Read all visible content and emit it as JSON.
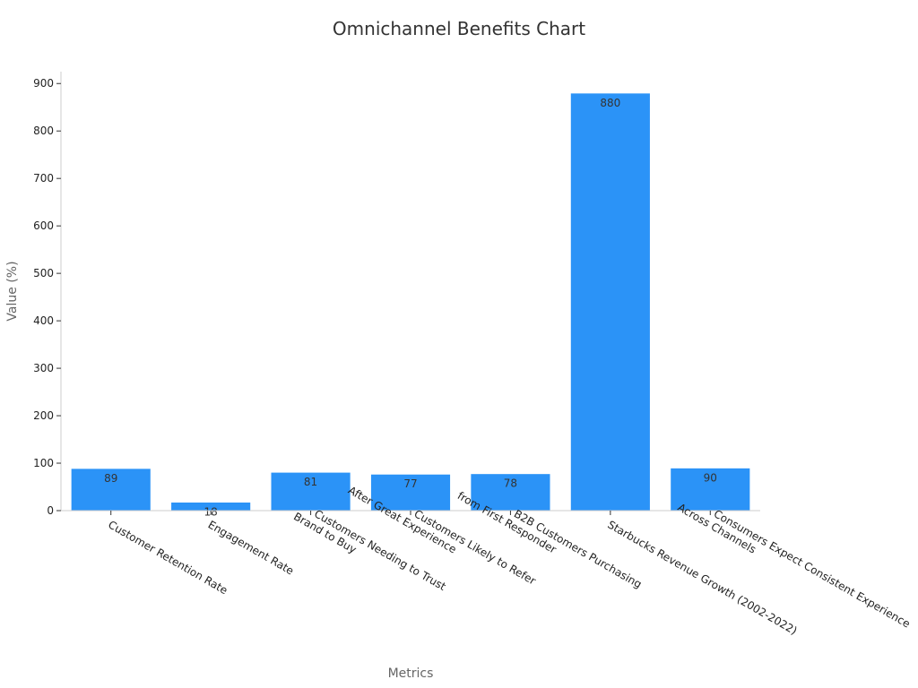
{
  "chart_data": {
    "type": "bar",
    "title": "Omnichannel Benefits Chart",
    "xlabel": "Metrics",
    "ylabel": "Value (%)",
    "ylim": [
      0,
      925
    ],
    "yticks": [
      0,
      100,
      200,
      300,
      400,
      500,
      600,
      700,
      800,
      900
    ],
    "grid": false,
    "bar_color": "#2b93f7",
    "categories": [
      [
        "Customer Retention Rate"
      ],
      [
        "Engagement Rate"
      ],
      [
        "Customers Needing to Trust",
        "Brand to Buy"
      ],
      [
        "Customers Likely to Refer",
        "After Great Experience"
      ],
      [
        "B2B Customers Purchasing",
        "from First Responder"
      ],
      [
        "Starbucks Revenue Growth (2002-2022)"
      ],
      [
        "Consumers Expect Consistent Experience",
        "Across Channels"
      ]
    ],
    "values": [
      89,
      18,
      81,
      77,
      78,
      880,
      90
    ],
    "data_labels": [
      "89",
      "18",
      "81",
      "77",
      "78",
      "880",
      "90"
    ]
  }
}
